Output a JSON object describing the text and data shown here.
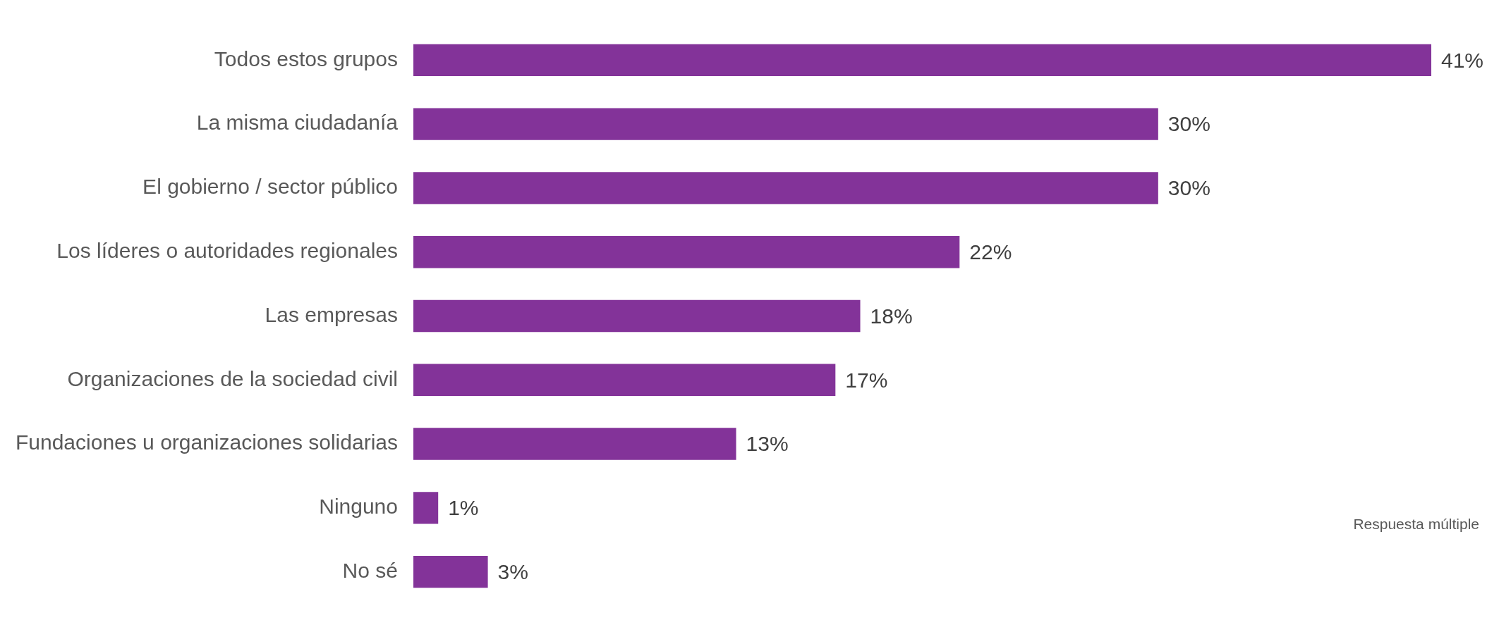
{
  "chart_data": {
    "type": "bar",
    "orientation": "horizontal",
    "categories": [
      "Todos estos grupos",
      "La misma ciudadanía",
      "El gobierno / sector público",
      "Los líderes o autoridades regionales",
      "Las empresas",
      "Organizaciones de la sociedad civil",
      "Fundaciones u organizaciones solidarias",
      "Ninguno",
      "No sé"
    ],
    "values": [
      41,
      30,
      30,
      22,
      18,
      17,
      13,
      1,
      3
    ],
    "value_labels": [
      "41%",
      "30%",
      "30%",
      "22%",
      "18%",
      "17%",
      "13%",
      "1%",
      "3%"
    ],
    "color": "#833399",
    "xlim": [
      0,
      41
    ],
    "legend": false,
    "annotations": [
      "Respuesta múltiple"
    ]
  }
}
